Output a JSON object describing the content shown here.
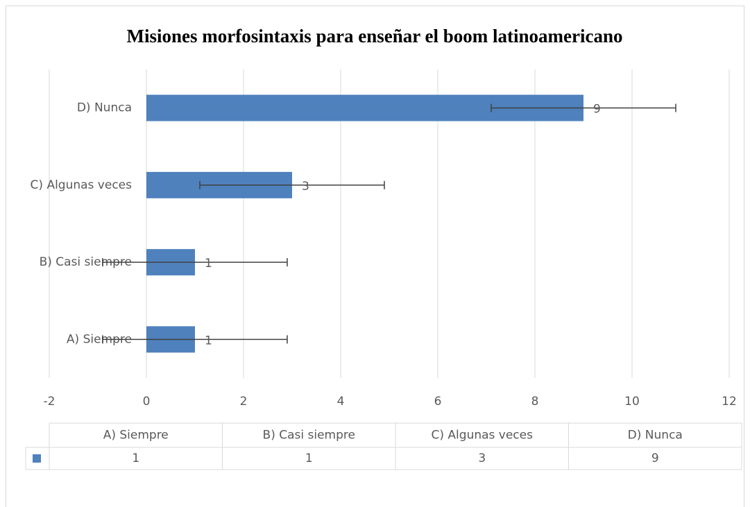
{
  "chart_data": {
    "type": "bar",
    "orientation": "horizontal",
    "title": "Misiones morfosintaxis para enseñar el boom latinoamericano",
    "categories": [
      "A) Siempre",
      "B) Casi siempre",
      "C) Algunas veces",
      "D) Nunca"
    ],
    "values": [
      1,
      1,
      3,
      9
    ],
    "errors": [
      1.9,
      1.9,
      1.9,
      1.9
    ],
    "color": "#4f81bd",
    "xlim": [
      -2,
      12
    ],
    "xticks": [
      -2,
      0,
      2,
      4,
      6,
      8,
      10,
      12
    ],
    "grid": true,
    "data_table": true
  }
}
